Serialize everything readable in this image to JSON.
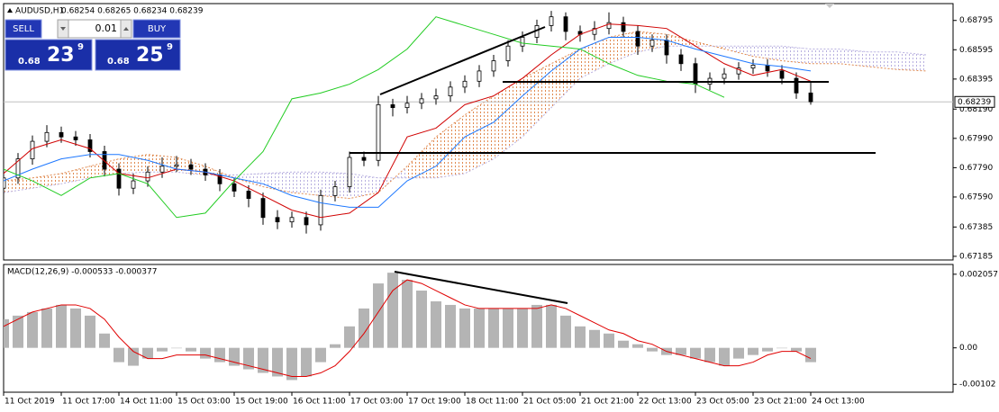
{
  "chart_data": [
    {
      "type": "candlestick",
      "title": "AUDUSD,H1",
      "subtitle": "0.68254 0.68265 0.68234 0.68239",
      "x": [
        0,
        4,
        8,
        12,
        16,
        20,
        24,
        28,
        32,
        36,
        40,
        44,
        48,
        52,
        56,
        60,
        64,
        68,
        72,
        76,
        80,
        84,
        88,
        92,
        96,
        100,
        104,
        108,
        112,
        116,
        120,
        124,
        128,
        132,
        136,
        140,
        144,
        148,
        152,
        156,
        160,
        164,
        168,
        172,
        176,
        180,
        184,
        188,
        192,
        196,
        200,
        204,
        208,
        212,
        216,
        220,
        224
      ],
      "open": [
        0.6765,
        0.6772,
        0.6785,
        0.6797,
        0.6803,
        0.68,
        0.6798,
        0.679,
        0.6778,
        0.6765,
        0.677,
        0.6776,
        0.678,
        0.6781,
        0.6778,
        0.6774,
        0.6768,
        0.6763,
        0.6758,
        0.6745,
        0.6742,
        0.6745,
        0.674,
        0.676,
        0.6766,
        0.6786,
        0.6784,
        0.6822,
        0.682,
        0.6823,
        0.6826,
        0.6828,
        0.6834,
        0.6838,
        0.6845,
        0.6852,
        0.6862,
        0.6868,
        0.6876,
        0.6882,
        0.6872,
        0.687,
        0.6874,
        0.6878,
        0.6872,
        0.6862,
        0.6866,
        0.6856,
        0.685,
        0.6836,
        0.684,
        0.6843,
        0.6847,
        0.6849,
        0.6845,
        0.684,
        0.683
      ],
      "high": [
        0.6776,
        0.6789,
        0.6801,
        0.6808,
        0.6807,
        0.6804,
        0.6802,
        0.6794,
        0.6782,
        0.6775,
        0.678,
        0.6786,
        0.6787,
        0.6785,
        0.6782,
        0.6778,
        0.6772,
        0.6767,
        0.6762,
        0.675,
        0.6749,
        0.6749,
        0.6764,
        0.677,
        0.679,
        0.679,
        0.6828,
        0.6826,
        0.6828,
        0.683,
        0.6833,
        0.6838,
        0.6842,
        0.6849,
        0.6856,
        0.6866,
        0.6872,
        0.688,
        0.6886,
        0.6885,
        0.6876,
        0.6879,
        0.6885,
        0.6882,
        0.6876,
        0.687,
        0.687,
        0.686,
        0.6854,
        0.6844,
        0.6847,
        0.6851,
        0.6853,
        0.6853,
        0.6849,
        0.6844,
        0.6838
      ],
      "low": [
        0.676,
        0.6768,
        0.6781,
        0.6793,
        0.6796,
        0.6794,
        0.6786,
        0.6773,
        0.676,
        0.6761,
        0.6766,
        0.6772,
        0.6776,
        0.6774,
        0.677,
        0.6763,
        0.6759,
        0.6752,
        0.674,
        0.6737,
        0.6738,
        0.6734,
        0.6736,
        0.6756,
        0.6762,
        0.678,
        0.678,
        0.6814,
        0.6816,
        0.6819,
        0.6822,
        0.6824,
        0.683,
        0.6834,
        0.6841,
        0.6848,
        0.6858,
        0.6864,
        0.6872,
        0.6866,
        0.6865,
        0.6866,
        0.687,
        0.6868,
        0.6856,
        0.6858,
        0.685,
        0.6845,
        0.683,
        0.6832,
        0.6836,
        0.6839,
        0.6843,
        0.6841,
        0.6836,
        0.6826,
        0.6822
      ],
      "close": [
        0.6772,
        0.6785,
        0.6797,
        0.6803,
        0.68,
        0.6798,
        0.679,
        0.6778,
        0.6765,
        0.677,
        0.6776,
        0.678,
        0.6781,
        0.6778,
        0.6774,
        0.6768,
        0.6763,
        0.6758,
        0.6745,
        0.6742,
        0.6745,
        0.674,
        0.676,
        0.6766,
        0.6786,
        0.6784,
        0.6822,
        0.682,
        0.6823,
        0.6826,
        0.6828,
        0.6834,
        0.6838,
        0.6845,
        0.6852,
        0.6862,
        0.6868,
        0.6876,
        0.6882,
        0.6872,
        0.687,
        0.6874,
        0.6878,
        0.6872,
        0.6862,
        0.6866,
        0.6856,
        0.685,
        0.6836,
        0.684,
        0.6843,
        0.6847,
        0.6849,
        0.6845,
        0.684,
        0.683,
        0.6824
      ],
      "up_color": "#ffffff",
      "down_color": "#000000",
      "color": "#000000",
      "lines": [
        {
          "color": "#d00000",
          "x": [
            0,
            8,
            16,
            24,
            32,
            40,
            48,
            56,
            64,
            72,
            80,
            88,
            96,
            104,
            112,
            120,
            128,
            136,
            144,
            152,
            160,
            168,
            176,
            184,
            192,
            200,
            208,
            216,
            224
          ],
          "values": [
            0.6775,
            0.6792,
            0.6798,
            0.6792,
            0.6775,
            0.6772,
            0.6778,
            0.6776,
            0.677,
            0.676,
            0.675,
            0.6745,
            0.6748,
            0.6762,
            0.68,
            0.6806,
            0.6822,
            0.6828,
            0.684,
            0.6856,
            0.687,
            0.6877,
            0.6876,
            0.6874,
            0.6862,
            0.685,
            0.6842,
            0.6846,
            0.6838
          ]
        },
        {
          "color": "#1e78ff",
          "x": [
            0,
            8,
            16,
            24,
            32,
            40,
            48,
            56,
            64,
            72,
            80,
            88,
            96,
            104,
            112,
            120,
            128,
            136,
            144,
            152,
            160,
            168,
            176,
            184,
            192,
            200,
            208,
            216,
            224
          ],
          "values": [
            0.677,
            0.6778,
            0.6785,
            0.6788,
            0.6788,
            0.6784,
            0.6778,
            0.6776,
            0.6772,
            0.6768,
            0.676,
            0.6755,
            0.6752,
            0.6752,
            0.677,
            0.678,
            0.68,
            0.681,
            0.6828,
            0.6845,
            0.686,
            0.6868,
            0.6868,
            0.6866,
            0.686,
            0.6855,
            0.685,
            0.6848,
            0.6845
          ]
        },
        {
          "color": "#22cc22",
          "x": [
            0,
            8,
            16,
            24,
            32,
            40,
            48,
            56,
            64,
            72,
            80,
            88,
            96,
            104,
            112,
            120,
            128,
            136,
            144,
            152,
            160,
            168,
            176,
            184,
            192,
            200
          ],
          "values": [
            0.6778,
            0.677,
            0.676,
            0.6772,
            0.6775,
            0.6768,
            0.6745,
            0.6748,
            0.677,
            0.679,
            0.6826,
            0.683,
            0.6836,
            0.6846,
            0.686,
            0.6882,
            0.6876,
            0.687,
            0.6864,
            0.6862,
            0.686,
            0.685,
            0.6842,
            0.6838,
            0.6836,
            0.6827
          ]
        }
      ],
      "cloud": {
        "up_color": "#e08a50",
        "down_color": "#b8b0e0",
        "x": [
          0,
          8,
          16,
          24,
          32,
          40,
          48,
          56,
          64,
          72,
          80,
          88,
          96,
          104,
          112,
          120,
          128,
          136,
          144,
          152,
          160,
          168,
          176,
          184,
          192,
          200,
          208,
          216,
          224,
          232,
          240,
          248,
          256
        ],
        "span_a": [
          0.677,
          0.6772,
          0.6775,
          0.678,
          0.6785,
          0.6788,
          0.6786,
          0.678,
          0.6772,
          0.6766,
          0.6762,
          0.676,
          0.6758,
          0.6762,
          0.678,
          0.68,
          0.6815,
          0.6828,
          0.684,
          0.685,
          0.686,
          0.6868,
          0.6872,
          0.687,
          0.6865,
          0.686,
          0.6855,
          0.6852,
          0.685,
          0.685,
          0.6848,
          0.6846,
          0.6845
        ],
        "span_b": [
          0.6762,
          0.6765,
          0.6768,
          0.6772,
          0.6775,
          0.6776,
          0.6776,
          0.6774,
          0.6774,
          0.6775,
          0.6776,
          0.6776,
          0.6775,
          0.6772,
          0.6772,
          0.6772,
          0.6775,
          0.6785,
          0.68,
          0.682,
          0.684,
          0.685,
          0.6858,
          0.6862,
          0.6862,
          0.6862,
          0.6862,
          0.6862,
          0.686,
          0.686,
          0.6858,
          0.6858,
          0.6856
        ]
      },
      "price_label": 0.68239,
      "xlim": [
        0,
        263.5
      ],
      "ylim": [
        0.6716,
        0.6891
      ],
      "yticks": [
        0.68795,
        0.68595,
        0.68395,
        {
          "value": 0.6819,
          "label": "0.68190"
        },
        {
          "value": 0.6799,
          "label": "0.67990"
        },
        {
          "value": 0.6779,
          "label": "0.67790"
        },
        {
          "value": 0.6759,
          "label": "0.67590"
        },
        0.67385,
        0.67185
      ]
    },
    {
      "type": "bar",
      "title": "MACD(12,26,9) -0.000533 -0.000377",
      "x": [
        0,
        4,
        8,
        12,
        16,
        20,
        24,
        28,
        32,
        36,
        40,
        44,
        48,
        52,
        56,
        60,
        64,
        68,
        72,
        76,
        80,
        84,
        88,
        92,
        96,
        100,
        104,
        108,
        112,
        116,
        120,
        124,
        128,
        132,
        136,
        140,
        144,
        148,
        152,
        156,
        160,
        164,
        168,
        172,
        176,
        180,
        184,
        188,
        192,
        196,
        200,
        204,
        208,
        212,
        216,
        220,
        224
      ],
      "series": [
        {
          "type": "bar",
          "color": "#b4b4b4",
          "values": [
            0.0008,
            0.0009,
            0.001,
            0.0011,
            0.0012,
            0.0011,
            0.0009,
            0.0004,
            -0.0004,
            -0.0005,
            -0.0003,
            -0.0001,
            0.0,
            -0.0001,
            -0.0003,
            -0.0004,
            -0.0005,
            -0.0006,
            -0.0007,
            -0.0008,
            -0.0009,
            -0.0008,
            -0.0004,
            0.0001,
            0.0006,
            0.0011,
            0.0018,
            0.0021,
            0.0019,
            0.0016,
            0.0013,
            0.0012,
            0.0011,
            0.0011,
            0.0011,
            0.0011,
            0.0011,
            0.0012,
            0.0012,
            0.0009,
            0.0006,
            0.0005,
            0.0004,
            0.0002,
            0.0001,
            -0.0001,
            -0.0002,
            -0.0002,
            -0.0003,
            -0.0004,
            -0.0005,
            -0.0003,
            -0.0002,
            -0.0001,
            0.0,
            -0.0001,
            -0.0004
          ]
        },
        {
          "type": "line",
          "color": "#e00000",
          "values": [
            0.0006,
            0.0008,
            0.001,
            0.0011,
            0.0012,
            0.0012,
            0.0011,
            0.0008,
            0.0003,
            -0.0001,
            -0.0003,
            -0.0003,
            -0.0002,
            -0.0002,
            -0.0002,
            -0.0003,
            -0.0004,
            -0.0005,
            -0.0006,
            -0.0007,
            -0.0008,
            -0.0008,
            -0.0007,
            -0.0005,
            -0.0001,
            0.0004,
            0.001,
            0.0016,
            0.0019,
            0.0018,
            0.0016,
            0.0014,
            0.0012,
            0.0011,
            0.0011,
            0.0011,
            0.0011,
            0.0011,
            0.0012,
            0.0011,
            0.0009,
            0.0007,
            0.0005,
            0.0004,
            0.0002,
            0.0001,
            -0.0001,
            -0.0002,
            -0.0003,
            -0.0004,
            -0.0005,
            -0.0005,
            -0.0004,
            -0.0002,
            -0.0001,
            -0.0001,
            -0.0003
          ]
        }
      ],
      "xlim": [
        0,
        263.5
      ],
      "ylim": [
        -0.00124,
        0.00233
      ],
      "yticks": [
        0.002057,
        {
          "value": 0,
          "label": "0.00"
        },
        -0.00102
      ],
      "xticks": [
        {
          "value": 0,
          "label": "11 Oct 2019"
        },
        {
          "value": 16,
          "label": "11 Oct 17:00"
        },
        {
          "value": 32,
          "label": "14 Oct 11:00"
        },
        {
          "value": 48,
          "label": "15 Oct 03:00"
        },
        {
          "value": 64,
          "label": "15 Oct 19:00"
        },
        {
          "value": 80,
          "label": "16 Oct 11:00"
        },
        {
          "value": 96,
          "label": "17 Oct 03:00"
        },
        {
          "value": 112,
          "label": "17 Oct 19:00"
        },
        {
          "value": 128,
          "label": "18 Oct 11:00"
        },
        {
          "value": 144,
          "label": "21 Oct 05:00"
        },
        {
          "value": 160,
          "label": "21 Oct 21:00"
        },
        {
          "value": 176,
          "label": "22 Oct 13:00"
        },
        {
          "value": 192,
          "label": "23 Oct 05:00"
        },
        {
          "value": 208,
          "label": "23 Oct 21:00"
        },
        {
          "value": 224,
          "label": "24 Oct 13:00"
        }
      ]
    }
  ],
  "trade_panel": {
    "sell": "SELL",
    "lot": "0.01",
    "buy": "BUY",
    "sell_price": {
      "base": "0.68",
      "pips": "23",
      "point": "9"
    },
    "buy_price": {
      "base": "0.68",
      "pips": "25",
      "point": "9"
    }
  }
}
